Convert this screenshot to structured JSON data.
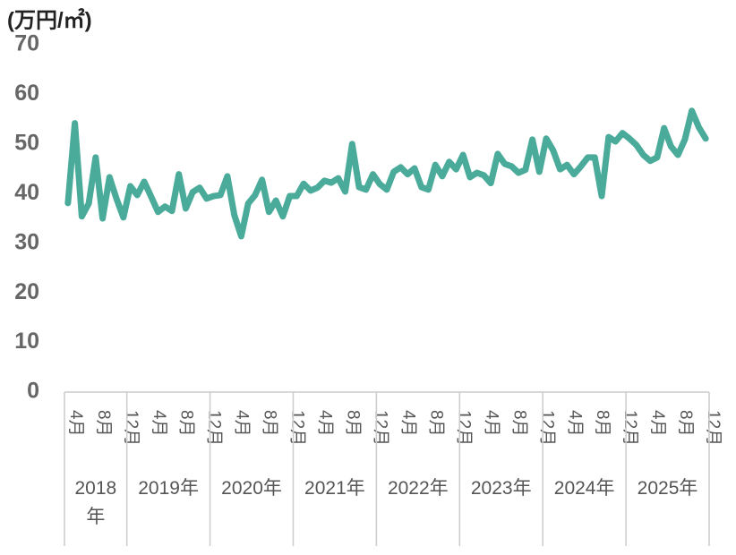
{
  "chart_data": {
    "type": "line",
    "y_axis_label": "(万円/㎡)",
    "groups": [
      {
        "label": "2018年",
        "categories": [
          "4月",
          null,
          null,
          null,
          "8月",
          null,
          null,
          null,
          "12月"
        ]
      },
      {
        "label": "2019年",
        "categories": [
          null,
          null,
          null,
          "4月",
          null,
          null,
          null,
          "8月",
          null,
          null,
          null,
          "12月"
        ]
      },
      {
        "label": "2020年",
        "categories": [
          null,
          null,
          null,
          "4月",
          null,
          null,
          null,
          "8月",
          null,
          null,
          null,
          "12月"
        ]
      },
      {
        "label": "2021年",
        "categories": [
          null,
          null,
          null,
          "4月",
          null,
          null,
          null,
          "8月",
          null,
          null,
          null,
          "12月"
        ]
      },
      {
        "label": "2022年",
        "categories": [
          null,
          null,
          null,
          "4月",
          null,
          null,
          null,
          "8月",
          null,
          null,
          null,
          "12月"
        ]
      },
      {
        "label": "2023年",
        "categories": [
          null,
          null,
          null,
          "4月",
          null,
          null,
          null,
          "8月",
          null,
          null,
          null,
          "12月"
        ]
      },
      {
        "label": "2024年",
        "categories": [
          null,
          null,
          null,
          "4月",
          null,
          null,
          null,
          "8月",
          null,
          null,
          null,
          "12月"
        ]
      },
      {
        "label": "2025年",
        "categories": [
          null,
          null,
          null,
          "4月",
          null,
          null,
          null,
          "8月",
          null,
          null,
          null,
          "12月"
        ]
      }
    ],
    "color": "#4aab9a",
    "values": [
      38.1,
      54.2,
      35.4,
      38,
      47.3,
      35,
      43.3,
      39,
      35.2,
      41.5,
      39.7,
      42.4,
      39.4,
      36.3,
      37.4,
      36.5,
      43.9,
      37,
      40.3,
      41.2,
      39,
      39.5,
      39.7,
      43.5,
      35.7,
      31.4,
      38,
      39.7,
      42.8,
      36.3,
      38.6,
      35.4,
      39.5,
      39.5,
      42,
      40.6,
      41.2,
      42.6,
      42.2,
      43.1,
      40.4,
      50,
      41.3,
      40.8,
      43.9,
      41.9,
      40.8,
      44.4,
      45.3,
      43.9,
      45.1,
      41.3,
      40.8,
      45.8,
      43.5,
      46.4,
      44.9,
      47.8,
      43.3,
      44.2,
      43.7,
      42.1,
      48,
      46,
      45.5,
      44.2,
      44.8,
      50.9,
      44.4,
      51.1,
      48.7,
      44.9,
      45.8,
      43.9,
      45.5,
      47.3,
      47.3,
      39.5,
      51.4,
      50.5,
      52.2,
      51.1,
      49.8,
      47.8,
      46.6,
      47.3,
      53.2,
      49.5,
      47.8,
      50.9,
      56.7,
      53.4,
      51.1
    ],
    "ylim": [
      0,
      70
    ],
    "yticks": [
      0,
      10,
      20,
      30,
      40,
      50,
      60,
      70
    ]
  }
}
